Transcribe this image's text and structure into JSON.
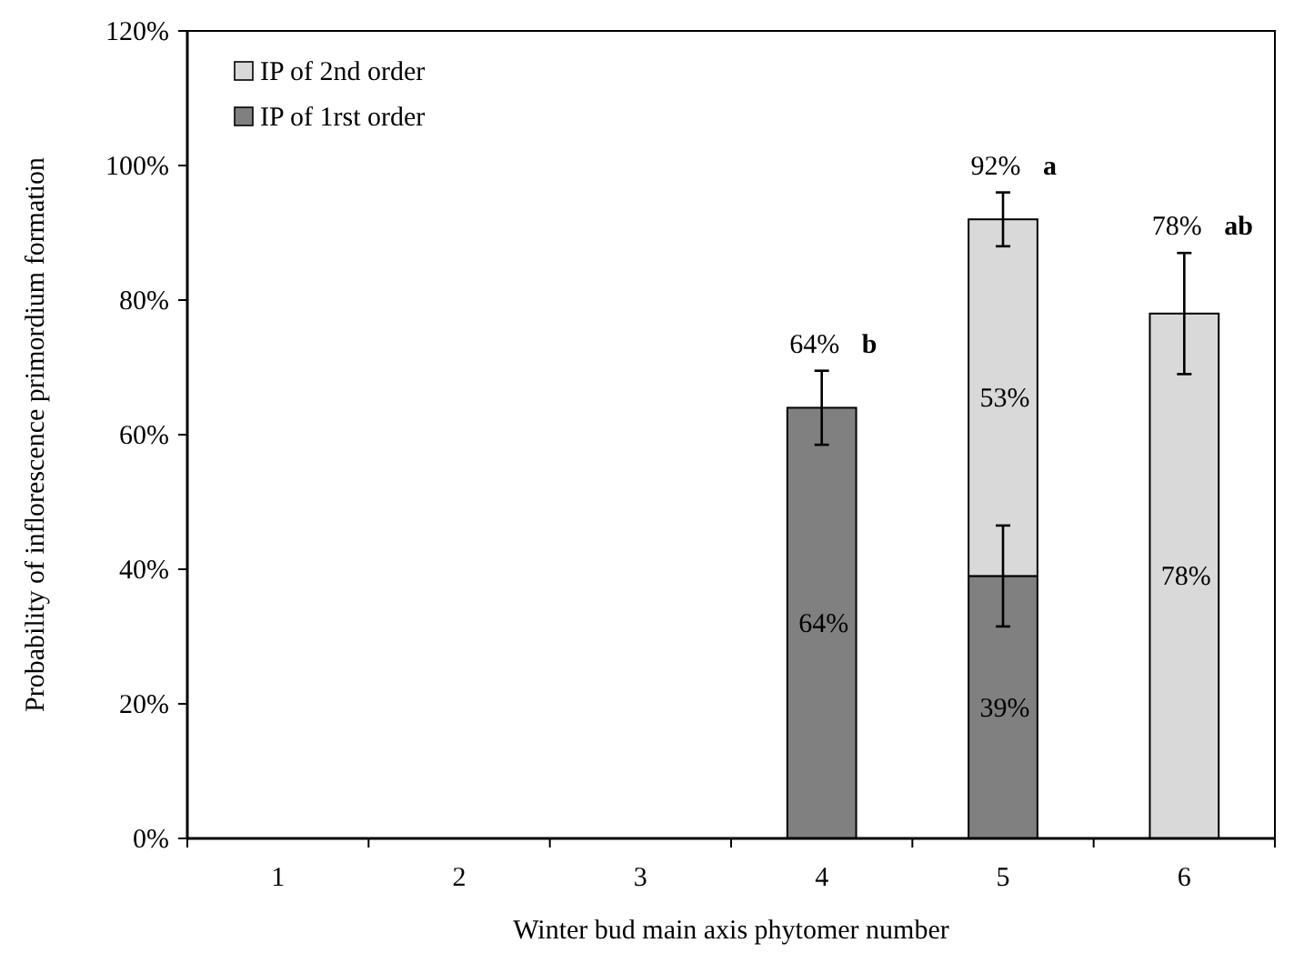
{
  "chart_data": {
    "type": "bar",
    "stacked": true,
    "xlabel": "Winter bud main axis phytomer number",
    "ylabel": "Probability of inflorescence primordium formation",
    "categories": [
      "1",
      "2",
      "3",
      "4",
      "5",
      "6"
    ],
    "series": [
      {
        "name": "IP of 1rst order",
        "color": "#808080",
        "values": [
          null,
          null,
          null,
          64,
          39,
          null
        ],
        "errors": [
          null,
          null,
          null,
          5.5,
          7.5,
          null
        ],
        "value_labels": [
          null,
          null,
          null,
          "64%",
          "39%",
          null
        ]
      },
      {
        "name": "IP of 2nd order",
        "color": "#d9d9d9",
        "values": [
          null,
          null,
          null,
          null,
          53,
          78
        ],
        "errors": [
          null,
          null,
          null,
          null,
          4,
          9
        ],
        "value_labels": [
          null,
          null,
          null,
          null,
          "53%",
          "78%"
        ]
      }
    ],
    "ylim": [
      0,
      120
    ],
    "yticks": [
      {
        "value": 0,
        "label": "0%"
      },
      {
        "value": 20,
        "label": "20%"
      },
      {
        "value": 40,
        "label": "40%"
      },
      {
        "value": 60,
        "label": "60%"
      },
      {
        "value": 80,
        "label": "80%"
      },
      {
        "value": 100,
        "label": "100%"
      },
      {
        "value": 120,
        "label": "120%"
      }
    ],
    "totals": [
      null,
      null,
      null,
      "64%",
      "92%",
      "78%"
    ],
    "annotations": [
      "b",
      "a",
      "ab"
    ],
    "legend": "top left",
    "grid": false
  }
}
